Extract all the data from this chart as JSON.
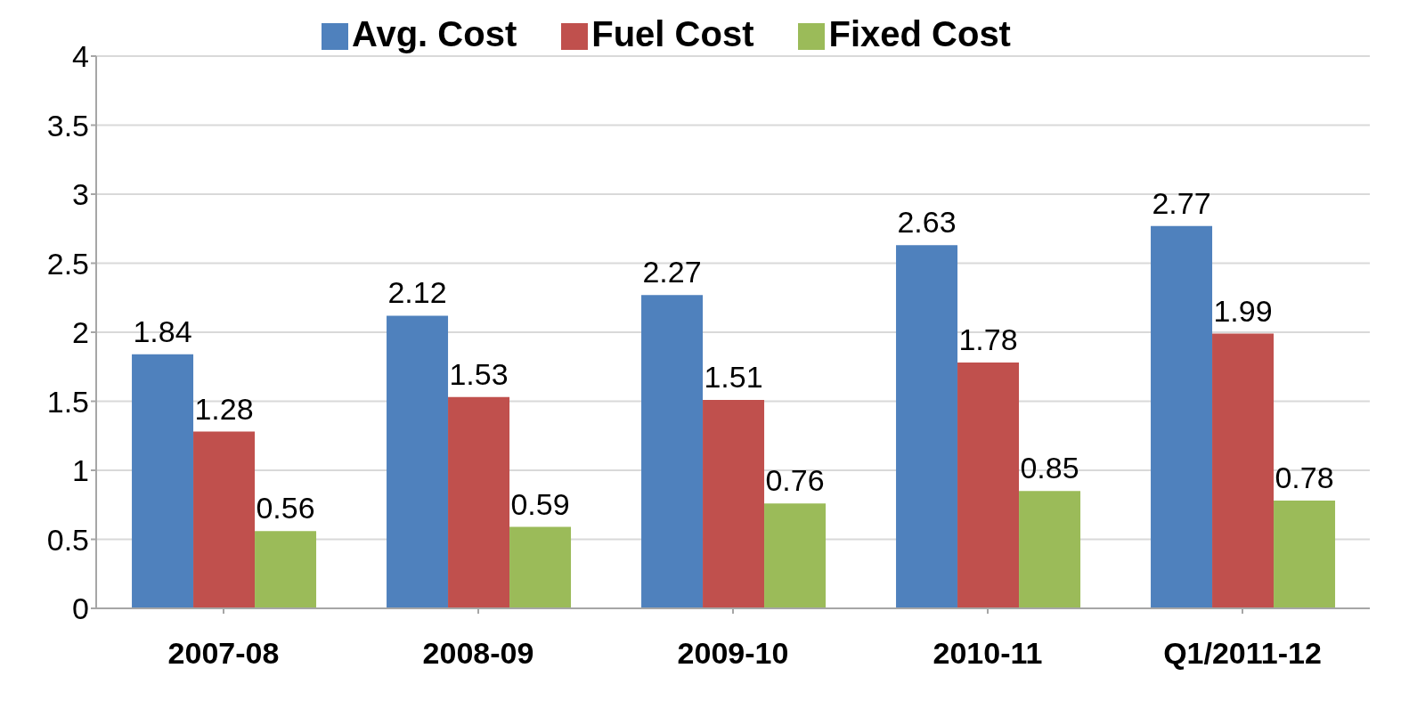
{
  "chart_data": {
    "type": "bar",
    "categories": [
      "2007-08",
      "2008-09",
      "2009-10",
      "2010-11",
      "Q1/2011-12"
    ],
    "series": [
      {
        "name": "Avg. Cost",
        "color": "#4f81bd",
        "values": [
          1.84,
          2.12,
          2.27,
          2.63,
          2.77
        ]
      },
      {
        "name": "Fuel Cost",
        "color": "#c0504d",
        "values": [
          1.28,
          1.53,
          1.51,
          1.78,
          1.99
        ]
      },
      {
        "name": "Fixed Cost",
        "color": "#9bbb59",
        "values": [
          0.56,
          0.59,
          0.76,
          0.85,
          0.78
        ]
      }
    ],
    "ylim": [
      0,
      4
    ],
    "yticks": [
      0,
      0.5,
      1,
      1.5,
      2,
      2.5,
      3,
      3.5,
      4
    ],
    "grid": "y",
    "legend": "top",
    "data_labels": true
  }
}
